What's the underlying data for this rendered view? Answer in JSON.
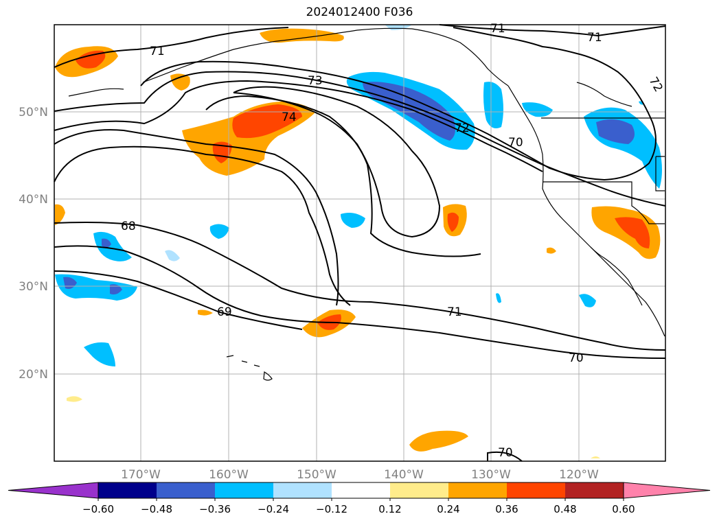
{
  "title": "2024012400 F036",
  "lat_labels": [
    "50°N",
    "40°N",
    "30°N",
    "20°N"
  ],
  "lon_labels": [
    "170°W",
    "160°W",
    "150°W",
    "140°W",
    "130°W",
    "120°W"
  ],
  "contour_labels": [
    "71",
    "71",
    "71",
    "73",
    "74",
    "72",
    "72",
    "70",
    "68",
    "69",
    "71",
    "70",
    "70"
  ],
  "colorbar": {
    "ticks": [
      "−0.60",
      "−0.48",
      "−0.36",
      "−0.24",
      "−0.12",
      "0.12",
      "0.24",
      "0.36",
      "0.48",
      "0.60"
    ],
    "colors": [
      "#9932cc",
      "#00008b",
      "#3a5fcd",
      "#00bfff",
      "#b0e2ff",
      "#ffffff",
      "#ffec8b",
      "#ffa500",
      "#ff4500",
      "#b22222",
      "#ff82ab"
    ]
  }
}
